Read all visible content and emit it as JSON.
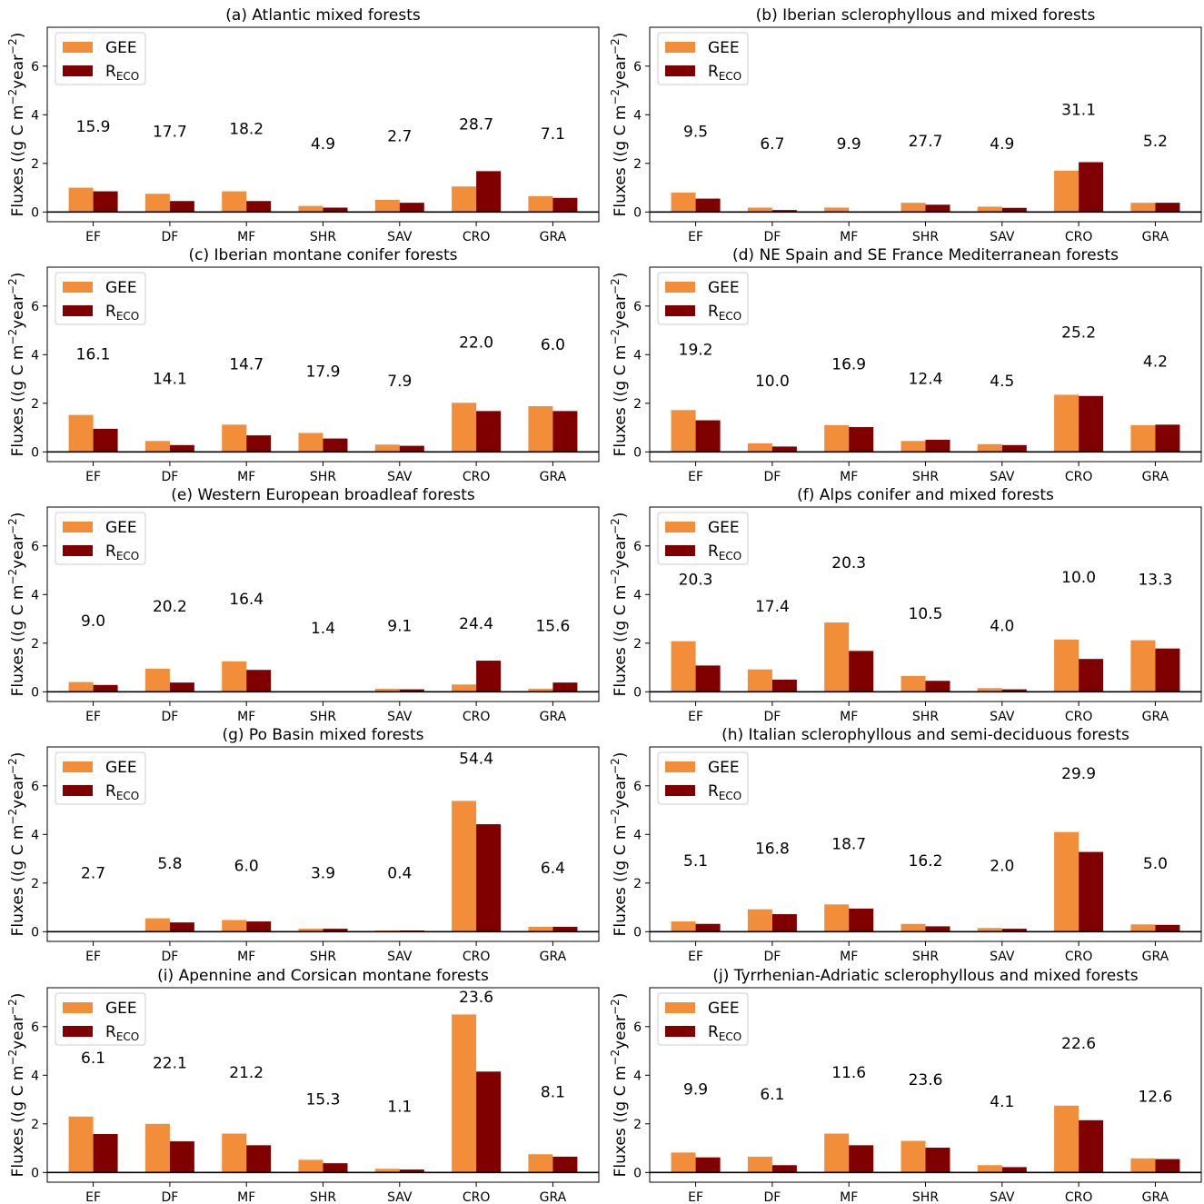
{
  "figure": {
    "categories": [
      "EF",
      "DF",
      "MF",
      "SHR",
      "SAV",
      "CRO",
      "GRA"
    ],
    "ylabel": "Fluxes ((g C m$^{-2}$year$^{-2}$)",
    "ylim": [
      -0.4,
      7.6
    ],
    "yticks": [
      0,
      2,
      4,
      6
    ],
    "legend": {
      "gee": "GEE",
      "reco_main": "R",
      "reco_sub": "ECO",
      "placement": "upper-left"
    },
    "colors": {
      "gee": "#F28E3A",
      "reco": "#800000"
    }
  },
  "chart_data": [
    {
      "type": "bar",
      "title": "(a) Atlantic mixed forests",
      "categories": [
        "EF",
        "DF",
        "MF",
        "SHR",
        "SAV",
        "CRO",
        "GRA"
      ],
      "series": [
        {
          "name": "GEE",
          "values": [
            1.0,
            0.75,
            0.85,
            0.25,
            0.5,
            1.05,
            0.65
          ]
        },
        {
          "name": "RECO",
          "values": [
            0.85,
            0.45,
            0.45,
            0.18,
            0.38,
            1.68,
            0.58
          ]
        }
      ],
      "annotations": [
        "15.9",
        "17.7",
        "18.2",
        "4.9",
        "2.7",
        "28.7",
        "7.1"
      ],
      "annotation_y": [
        3.3,
        3.1,
        3.2,
        2.6,
        2.9,
        3.4,
        3.0
      ],
      "ylabel": "Fluxes ((g C m$^{-2}$year$^{-2}$)",
      "ylim": [
        -0.4,
        7.6
      ]
    },
    {
      "type": "bar",
      "title": "(b) Iberian sclerophyllous and mixed forests",
      "categories": [
        "EF",
        "DF",
        "MF",
        "SHR",
        "SAV",
        "CRO",
        "GRA"
      ],
      "series": [
        {
          "name": "GEE",
          "values": [
            0.8,
            0.18,
            0.18,
            0.38,
            0.22,
            1.7,
            0.38
          ]
        },
        {
          "name": "RECO",
          "values": [
            0.55,
            0.08,
            0.0,
            0.3,
            0.17,
            2.05,
            0.38
          ]
        }
      ],
      "annotations": [
        "9.5",
        "6.7",
        "9.9",
        "27.7",
        "4.9",
        "31.1",
        "5.2"
      ],
      "annotation_y": [
        3.1,
        2.6,
        2.6,
        2.7,
        2.6,
        4.0,
        2.7
      ],
      "ylabel": "Fluxes ((g C m$^{-2}$year$^{-2}$)",
      "ylim": [
        -0.4,
        7.6
      ]
    },
    {
      "type": "bar",
      "title": "(c) Iberian montane conifer forests",
      "categories": [
        "EF",
        "DF",
        "MF",
        "SHR",
        "SAV",
        "CRO",
        "GRA"
      ],
      "series": [
        {
          "name": "GEE",
          "values": [
            1.52,
            0.45,
            1.12,
            0.78,
            0.3,
            2.02,
            1.88
          ]
        },
        {
          "name": "RECO",
          "values": [
            0.95,
            0.28,
            0.68,
            0.55,
            0.25,
            1.68,
            1.68
          ]
        }
      ],
      "annotations": [
        "16.1",
        "14.1",
        "14.7",
        "17.9",
        "7.9",
        "22.0",
        "6.0"
      ],
      "annotation_y": [
        3.8,
        2.8,
        3.4,
        3.1,
        2.7,
        4.3,
        4.2
      ],
      "ylabel": "Fluxes ((g C m$^{-2}$year$^{-2}$)",
      "ylim": [
        -0.4,
        7.6
      ]
    },
    {
      "type": "bar",
      "title": "(d) NE Spain and SE France Mediterranean forests",
      "categories": [
        "EF",
        "DF",
        "MF",
        "SHR",
        "SAV",
        "CRO",
        "GRA"
      ],
      "series": [
        {
          "name": "GEE",
          "values": [
            1.72,
            0.35,
            1.1,
            0.45,
            0.32,
            2.35,
            1.1
          ]
        },
        {
          "name": "RECO",
          "values": [
            1.3,
            0.22,
            1.02,
            0.5,
            0.28,
            2.3,
            1.12
          ]
        }
      ],
      "annotations": [
        "19.2",
        "10.0",
        "16.9",
        "12.4",
        "4.5",
        "25.2",
        "4.2"
      ],
      "annotation_y": [
        4.0,
        2.7,
        3.4,
        2.8,
        2.7,
        4.7,
        3.5
      ],
      "ylabel": "Fluxes ((g C m$^{-2}$year$^{-2}$)",
      "ylim": [
        -0.4,
        7.6
      ]
    },
    {
      "type": "bar",
      "title": "(e) Western European broadleaf forests",
      "categories": [
        "EF",
        "DF",
        "MF",
        "SHR",
        "SAV",
        "CRO",
        "GRA"
      ],
      "series": [
        {
          "name": "GEE",
          "values": [
            0.4,
            0.95,
            1.25,
            0.02,
            0.12,
            0.3,
            0.12
          ]
        },
        {
          "name": "RECO",
          "values": [
            0.28,
            0.38,
            0.9,
            0.0,
            0.1,
            1.28,
            0.38
          ]
        }
      ],
      "annotations": [
        "9.0",
        "20.2",
        "16.4",
        "1.4",
        "9.1",
        "24.4",
        "15.6"
      ],
      "annotation_y": [
        2.7,
        3.3,
        3.6,
        2.4,
        2.5,
        2.6,
        2.5
      ],
      "ylabel": "Fluxes ((g C m$^{-2}$year$^{-2}$)",
      "ylim": [
        -0.4,
        7.6
      ]
    },
    {
      "type": "bar",
      "title": "(f) Alps conifer and mixed forests",
      "categories": [
        "EF",
        "DF",
        "MF",
        "SHR",
        "SAV",
        "CRO",
        "GRA"
      ],
      "series": [
        {
          "name": "GEE",
          "values": [
            2.08,
            0.92,
            2.85,
            0.65,
            0.15,
            2.15,
            2.12
          ]
        },
        {
          "name": "RECO",
          "values": [
            1.08,
            0.5,
            1.68,
            0.45,
            0.1,
            1.35,
            1.78
          ]
        }
      ],
      "annotations": [
        "20.3",
        "17.4",
        "20.3",
        "10.5",
        "4.0",
        "10.0",
        "13.3"
      ],
      "annotation_y": [
        4.4,
        3.3,
        5.1,
        3.0,
        2.5,
        4.5,
        4.4
      ],
      "ylabel": "Fluxes ((g C m$^{-2}$year$^{-2}$)",
      "ylim": [
        -0.4,
        7.6
      ]
    },
    {
      "type": "bar",
      "title": "(g) Po Basin mixed forests",
      "categories": [
        "EF",
        "DF",
        "MF",
        "SHR",
        "SAV",
        "CRO",
        "GRA"
      ],
      "series": [
        {
          "name": "GEE",
          "values": [
            0.02,
            0.55,
            0.48,
            0.12,
            0.05,
            5.38,
            0.2
          ]
        },
        {
          "name": "RECO",
          "values": [
            0.02,
            0.38,
            0.42,
            0.12,
            0.05,
            4.42,
            0.2
          ]
        }
      ],
      "annotations": [
        "2.7",
        "5.8",
        "6.0",
        "3.9",
        "0.4",
        "54.4",
        "6.4"
      ],
      "annotation_y": [
        2.2,
        2.6,
        2.5,
        2.2,
        2.2,
        6.9,
        2.4
      ],
      "ylabel": "Fluxes ((g C m$^{-2}$year$^{-2}$)",
      "ylim": [
        -0.4,
        7.6
      ]
    },
    {
      "type": "bar",
      "title": "(h) Italian sclerophyllous and semi-deciduous forests",
      "categories": [
        "EF",
        "DF",
        "MF",
        "SHR",
        "SAV",
        "CRO",
        "GRA"
      ],
      "series": [
        {
          "name": "GEE",
          "values": [
            0.42,
            0.92,
            1.12,
            0.32,
            0.15,
            4.1,
            0.3
          ]
        },
        {
          "name": "RECO",
          "values": [
            0.32,
            0.72,
            0.95,
            0.22,
            0.12,
            3.28,
            0.28
          ]
        }
      ],
      "annotations": [
        "5.1",
        "16.8",
        "18.7",
        "16.2",
        "2.0",
        "29.9",
        "5.0"
      ],
      "annotation_y": [
        2.7,
        3.2,
        3.4,
        2.7,
        2.5,
        6.3,
        2.6
      ],
      "ylabel": "Fluxes ((g C m$^{-2}$year$^{-2}$)",
      "ylim": [
        -0.4,
        7.6
      ]
    },
    {
      "type": "bar",
      "title": "(i) Apennine and Corsican montane forests",
      "categories": [
        "EF",
        "DF",
        "MF",
        "SHR",
        "SAV",
        "CRO",
        "GRA"
      ],
      "series": [
        {
          "name": "GEE",
          "values": [
            2.3,
            2.0,
            1.6,
            0.52,
            0.15,
            6.5,
            0.75
          ]
        },
        {
          "name": "RECO",
          "values": [
            1.58,
            1.28,
            1.12,
            0.38,
            0.12,
            4.15,
            0.65
          ]
        }
      ],
      "annotations": [
        "6.1",
        "22.1",
        "21.2",
        "15.3",
        "1.1",
        "23.6",
        "8.1"
      ],
      "annotation_y": [
        4.5,
        4.3,
        3.9,
        2.8,
        2.5,
        7.0,
        3.1
      ],
      "ylabel": "Fluxes ((g C m$^{-2}$year$^{-2}$)",
      "ylim": [
        -0.4,
        7.6
      ]
    },
    {
      "type": "bar",
      "title": "(j) Tyrrhenian-Adriatic sclerophyllous and mixed forests",
      "categories": [
        "EF",
        "DF",
        "MF",
        "SHR",
        "SAV",
        "CRO",
        "GRA"
      ],
      "series": [
        {
          "name": "GEE",
          "values": [
            0.82,
            0.65,
            1.6,
            1.3,
            0.3,
            2.75,
            0.58
          ]
        },
        {
          "name": "RECO",
          "values": [
            0.62,
            0.3,
            1.12,
            1.02,
            0.22,
            2.15,
            0.55
          ]
        }
      ],
      "annotations": [
        "9.9",
        "6.1",
        "11.6",
        "23.6",
        "4.1",
        "22.6",
        "12.6"
      ],
      "annotation_y": [
        3.2,
        3.0,
        3.9,
        3.6,
        2.7,
        5.1,
        2.9
      ],
      "ylabel": "Fluxes ((g C m$^{-2}$year$^{-2}$)",
      "ylim": [
        -0.4,
        7.6
      ]
    }
  ]
}
